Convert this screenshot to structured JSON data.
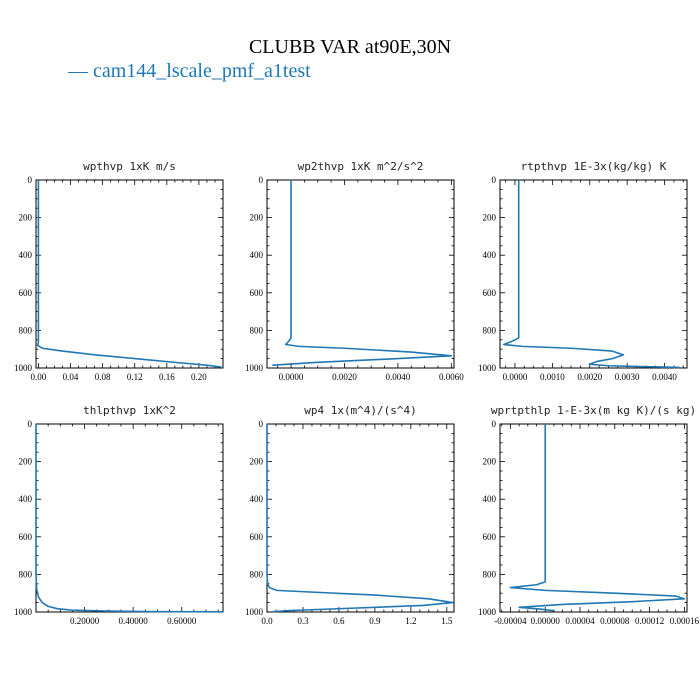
{
  "figure": {
    "title": "CLUBB VAR at90E,30N",
    "legend": {
      "line_text": "— ",
      "series_name": "cam144_lscale_pmf_a1test",
      "color": "#1f77b4"
    }
  },
  "chart_data": [
    {
      "type": "line",
      "title": "wpthvp   1xK m/s",
      "xlim": [
        -0.003,
        0.23
      ],
      "ylim": [
        1000,
        0
      ],
      "xticks": [
        0.0,
        0.04,
        0.08,
        0.12,
        0.16,
        0.2
      ],
      "xtick_labels": [
        "0.00",
        "0.04",
        "0.08",
        "0.12",
        "0.16",
        "0.20"
      ],
      "yticks": [
        0,
        200,
        400,
        600,
        800,
        1000
      ],
      "ytick_labels": [
        "0",
        "200",
        "400",
        "600",
        "800",
        "1000"
      ],
      "series": [
        {
          "name": "cam144_lscale_pmf_a1test",
          "x": [
            0.0,
            0.0,
            0.0,
            0.0,
            0.0,
            0.0,
            -0.001,
            0.005,
            0.03,
            0.07,
            0.12,
            0.17,
            0.21,
            0.228
          ],
          "y": [
            0,
            200,
            400,
            600,
            800,
            860,
            880,
            895,
            910,
            930,
            950,
            970,
            985,
            995
          ]
        }
      ]
    },
    {
      "type": "line",
      "title": "wp2thvp   1xK m^2/s^2",
      "xlim": [
        -0.0009,
        0.0061
      ],
      "ylim": [
        1000,
        0
      ],
      "xticks": [
        0.0,
        0.002,
        0.004,
        0.006
      ],
      "xtick_labels": [
        "0.0000",
        "0.0020",
        "0.0040",
        "0.0060"
      ],
      "yticks": [
        0,
        200,
        400,
        600,
        800,
        1000
      ],
      "ytick_labels": [
        "0",
        "200",
        "400",
        "600",
        "800",
        "1000"
      ],
      "series": [
        {
          "name": "cam144_lscale_pmf_a1test",
          "x": [
            0.0,
            0.0,
            0.0,
            0.0,
            0.0,
            0.0,
            -0.0001,
            -0.0002,
            0.0003,
            0.002,
            0.0045,
            0.006,
            0.004,
            0.001,
            -0.0007
          ],
          "y": [
            0,
            200,
            400,
            600,
            800,
            840,
            860,
            875,
            885,
            895,
            915,
            935,
            950,
            970,
            985
          ]
        }
      ]
    },
    {
      "type": "line",
      "title": "rtpthvp   1E-3x(kg/kg) K",
      "xlim": [
        -0.0004,
        0.0046
      ],
      "ylim": [
        1000,
        0
      ],
      "xticks": [
        0.0,
        0.001,
        0.002,
        0.003,
        0.004
      ],
      "xtick_labels": [
        "0.0000",
        "0.0010",
        "0.0020",
        "0.0030",
        "0.0040"
      ],
      "yticks": [
        0,
        200,
        400,
        600,
        800,
        1000
      ],
      "ytick_labels": [
        "0",
        "200",
        "400",
        "600",
        "800",
        "1000"
      ],
      "series": [
        {
          "name": "cam144_lscale_pmf_a1test",
          "x": [
            0.0001,
            0.0001,
            0.0001,
            0.0001,
            0.0001,
            0.0001,
            -0.0001,
            -0.0003,
            0.0002,
            0.0015,
            0.0026,
            0.0029,
            0.0026,
            0.0022,
            0.002,
            0.0025,
            0.0035,
            0.0044
          ],
          "y": [
            0,
            200,
            400,
            600,
            800,
            840,
            860,
            875,
            885,
            895,
            910,
            930,
            950,
            965,
            980,
            988,
            993,
            997
          ]
        }
      ]
    },
    {
      "type": "line",
      "title": "thlpthvp   1xK^2",
      "xlim": [
        0.0,
        0.77
      ],
      "ylim": [
        1000,
        0
      ],
      "xticks": [
        0.2,
        0.4,
        0.6
      ],
      "xtick_labels": [
        "0.20000",
        "0.40000",
        "0.60000"
      ],
      "yticks": [
        0,
        200,
        400,
        600,
        800,
        1000
      ],
      "ytick_labels": [
        "0",
        "200",
        "400",
        "600",
        "800",
        "1000"
      ],
      "series": [
        {
          "name": "cam144_lscale_pmf_a1test",
          "x": [
            0.0,
            0.0,
            0.0,
            0.0,
            0.003,
            0.01,
            0.025,
            0.05,
            0.09,
            0.15,
            0.3,
            0.5,
            0.77
          ],
          "y": [
            0,
            200,
            400,
            800,
            880,
            920,
            950,
            970,
            983,
            990,
            995,
            998,
            999
          ]
        }
      ]
    },
    {
      "type": "line",
      "title": "wp4   1x(m^4)/(s^4)",
      "xlim": [
        0.0,
        1.56
      ],
      "ylim": [
        1000,
        0
      ],
      "xticks": [
        0.0,
        0.3,
        0.6,
        0.9,
        1.2,
        1.5
      ],
      "xtick_labels": [
        "0.0",
        "0.3",
        "0.6",
        "0.9",
        "1.2",
        "1.5"
      ],
      "yticks": [
        0,
        200,
        400,
        600,
        800,
        1000
      ],
      "ytick_labels": [
        "0",
        "200",
        "400",
        "600",
        "800",
        "1000"
      ],
      "series": [
        {
          "name": "cam144_lscale_pmf_a1test",
          "x": [
            0.0,
            0.0,
            0.0,
            0.0,
            0.0,
            0.005,
            0.02,
            0.08,
            0.4,
            0.9,
            1.35,
            1.55,
            1.3,
            0.7,
            0.2,
            0.05
          ],
          "y": [
            0,
            200,
            400,
            600,
            800,
            850,
            870,
            885,
            895,
            910,
            930,
            950,
            965,
            980,
            992,
            998
          ]
        }
      ]
    },
    {
      "type": "line",
      "title": "wprtpthlp   1-E-3x(m kg K)/(s kg)",
      "xlim": [
        -5.2e-05,
        0.000163
      ],
      "ylim": [
        1000,
        0
      ],
      "xticks": [
        -4e-05,
        0.0,
        4e-05,
        8e-05,
        0.00012,
        0.00016
      ],
      "xtick_labels": [
        "-0.00004",
        "0.00000",
        "0.00004",
        "0.00008",
        "0.00012",
        "0.00016"
      ],
      "yticks": [
        0,
        200,
        400,
        600,
        800,
        1000
      ],
      "ytick_labels": [
        "0",
        "200",
        "400",
        "600",
        "800",
        "1000"
      ],
      "series": [
        {
          "name": "cam144_lscale_pmf_a1test",
          "x": [
            0.0,
            0.0,
            0.0,
            0.0,
            0.0,
            0.0,
            -1e-05,
            -4e-05,
            0.0,
            8e-05,
            0.00015,
            0.00016,
            0.0001,
            2e-05,
            -3e-05,
            -5e-06,
            1e-05
          ],
          "y": [
            0,
            200,
            400,
            600,
            800,
            840,
            855,
            870,
            885,
            900,
            915,
            930,
            945,
            960,
            975,
            985,
            993
          ]
        }
      ]
    }
  ]
}
